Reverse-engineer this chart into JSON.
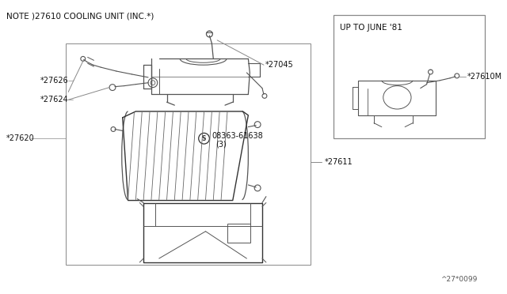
{
  "bg_color": "#ffffff",
  "lc": "#555555",
  "dc": "#333333",
  "note_text": "NOTE )27610 COOLING UNIT (INC.*)",
  "inset_title": "UP TO JUNE '81",
  "page_num": "^27*0099",
  "fig_width": 6.4,
  "fig_height": 3.72,
  "dpi": 100,
  "label_fs": 7.0,
  "note_fs": 7.5
}
